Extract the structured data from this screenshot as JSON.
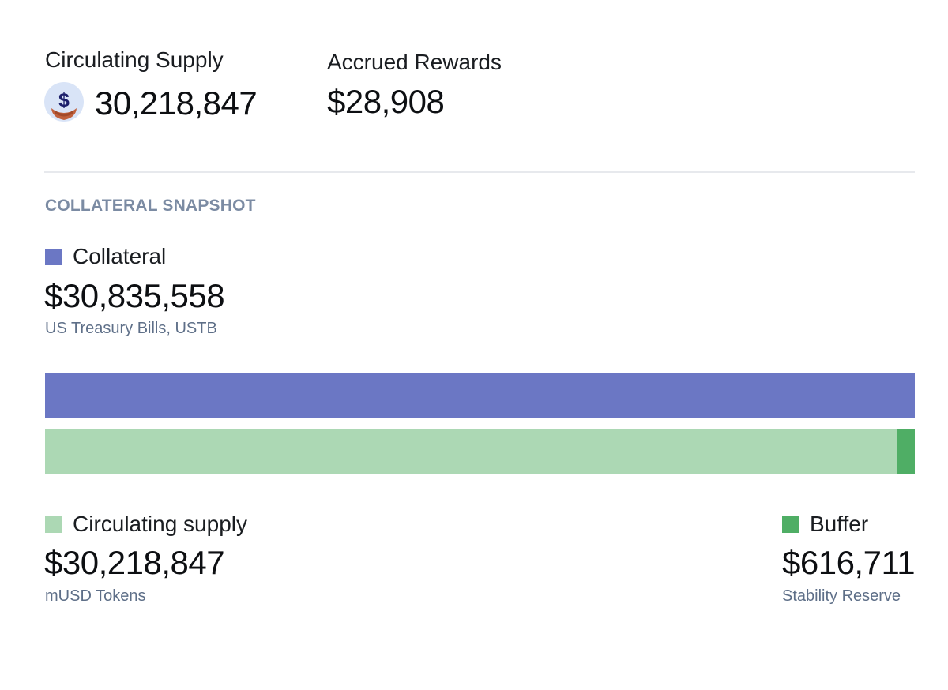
{
  "summary": {
    "circulating_supply": {
      "label": "Circulating Supply",
      "value": "30,218,847",
      "icon": "musd-token-icon"
    },
    "accrued_rewards": {
      "label": "Accrued Rewards",
      "value": "$28,908"
    }
  },
  "snapshot": {
    "title": "COLLATERAL SNAPSHOT",
    "collateral": {
      "label": "Collateral",
      "value": "$30,835,558",
      "description": "US Treasury Bills, USTB",
      "color": "#6b77c4",
      "fraction": 1.0
    },
    "circulating": {
      "label": "Circulating supply",
      "value": "$30,218,847",
      "description": "mUSD Tokens",
      "color": "#acd8b4",
      "fraction": 0.98
    },
    "buffer": {
      "label": "Buffer",
      "value": "$616,711",
      "description": "Stability Reserve",
      "color": "#4fae65",
      "fraction": 0.02
    }
  }
}
